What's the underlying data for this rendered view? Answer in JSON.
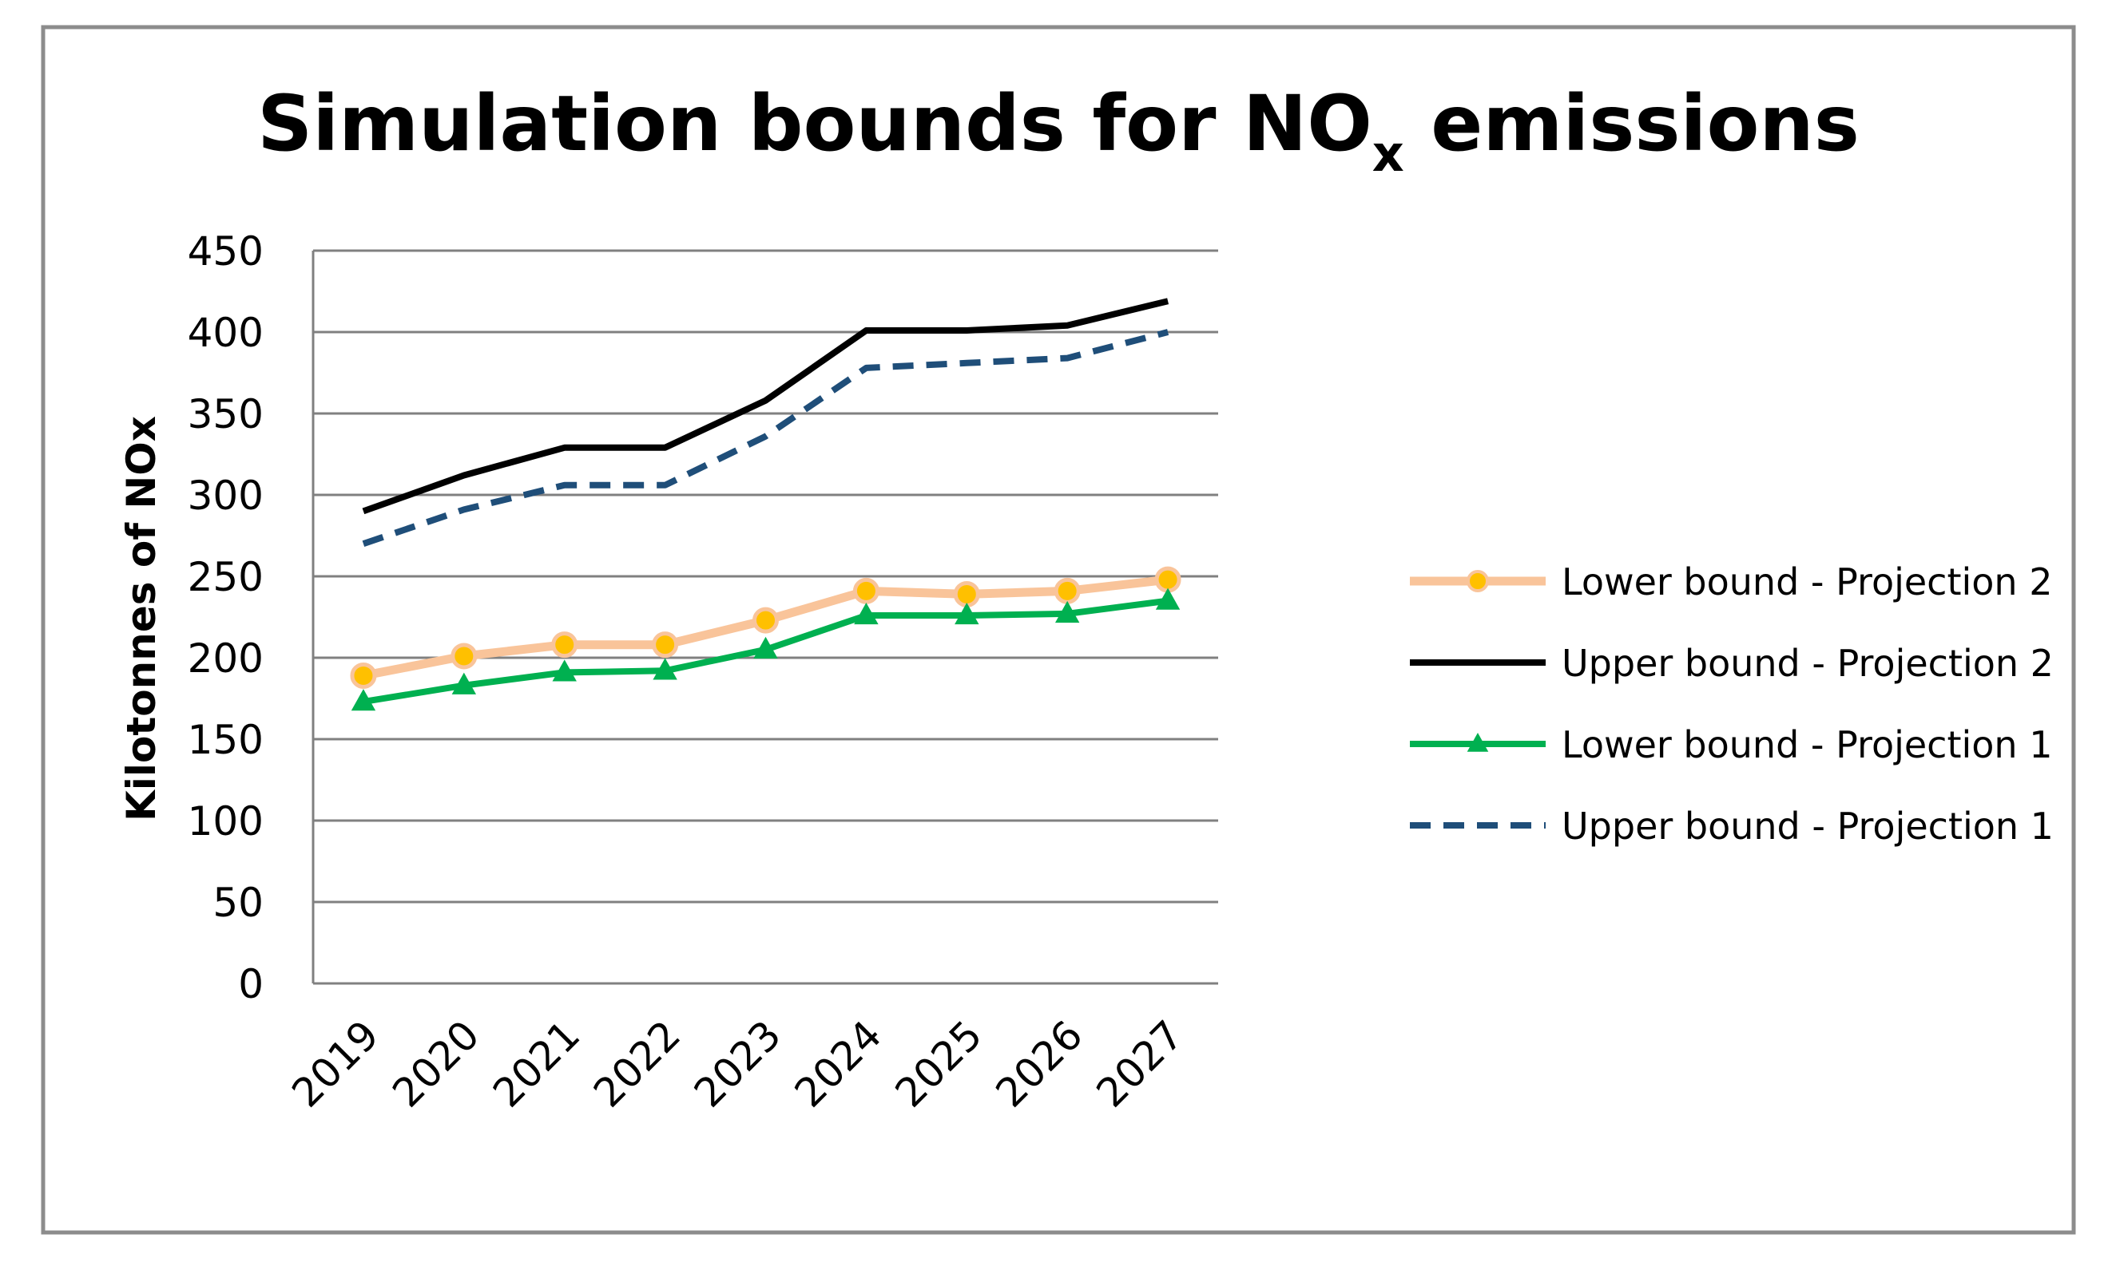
{
  "chart_data": {
    "type": "line",
    "title": "Simulation bounds for NO",
    "title_subscript": "x",
    "title_suffix": " emissions",
    "xlabel": "",
    "ylabel": "Kilotonnes of NOx",
    "ylim": [
      0,
      450
    ],
    "yticks": [
      0,
      50,
      100,
      150,
      200,
      250,
      300,
      350,
      400,
      450
    ],
    "grid": true,
    "legend_position": "right",
    "categories": [
      "2019",
      "2020",
      "2021",
      "2022",
      "2023",
      "2024",
      "2025",
      "2026",
      "2027"
    ],
    "series": [
      {
        "name": "Lower bound - Projection 2",
        "color": "#f9c49a",
        "marker": "circle",
        "marker_color": "#ffc000",
        "dash": "solid",
        "values": [
          189,
          201,
          208,
          208,
          223,
          241,
          239,
          241,
          248
        ]
      },
      {
        "name": "Upper bound - Projection 2",
        "color": "#000000",
        "marker": "none",
        "dash": "solid",
        "values": [
          290,
          312,
          329,
          329,
          358,
          401,
          401,
          404,
          419
        ]
      },
      {
        "name": "Lower bound - Projection 1",
        "color": "#00b050",
        "marker": "triangle",
        "marker_color": "#00b050",
        "dash": "solid",
        "values": [
          173,
          183,
          191,
          192,
          205,
          226,
          226,
          227,
          235
        ]
      },
      {
        "name": "Upper bound - Projection 1",
        "color": "#1f4e79",
        "marker": "none",
        "dash": "dashed",
        "values": [
          270,
          291,
          306,
          306,
          336,
          378,
          381,
          384,
          400
        ]
      }
    ]
  }
}
